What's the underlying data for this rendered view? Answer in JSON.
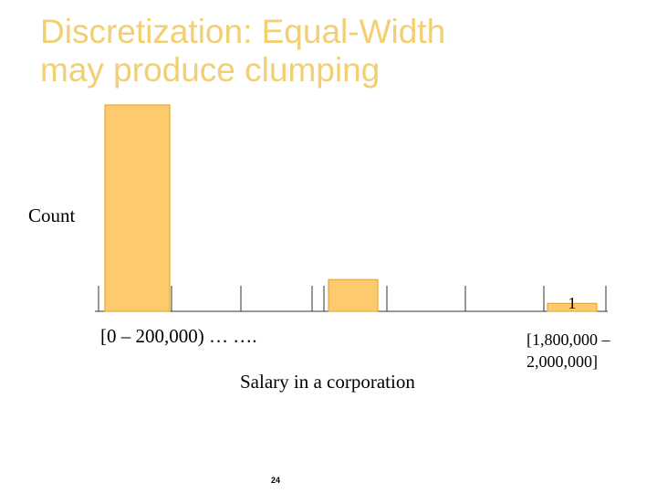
{
  "slide": {
    "title": "Discretization: Equal-Width\nmay produce clumping",
    "page_number": "24"
  },
  "chart_data": {
    "type": "bar",
    "ylabel": "Count",
    "xlabel": "Salary in a corporation",
    "bin_count": 10,
    "x_tick_left": "[0 – 200,000) … ….",
    "x_tick_right": "[1,800,000 –\n2,000,000]",
    "values": [
      {
        "bin": 0,
        "count": 26
      },
      {
        "bin": 3,
        "count": 4
      },
      {
        "bin": 9,
        "count": 1
      }
    ],
    "data_labels": [
      {
        "bin": 9,
        "text": "1"
      }
    ],
    "bar_color": "#fdcb6e",
    "bar_edge_color": "#e5a93a"
  }
}
